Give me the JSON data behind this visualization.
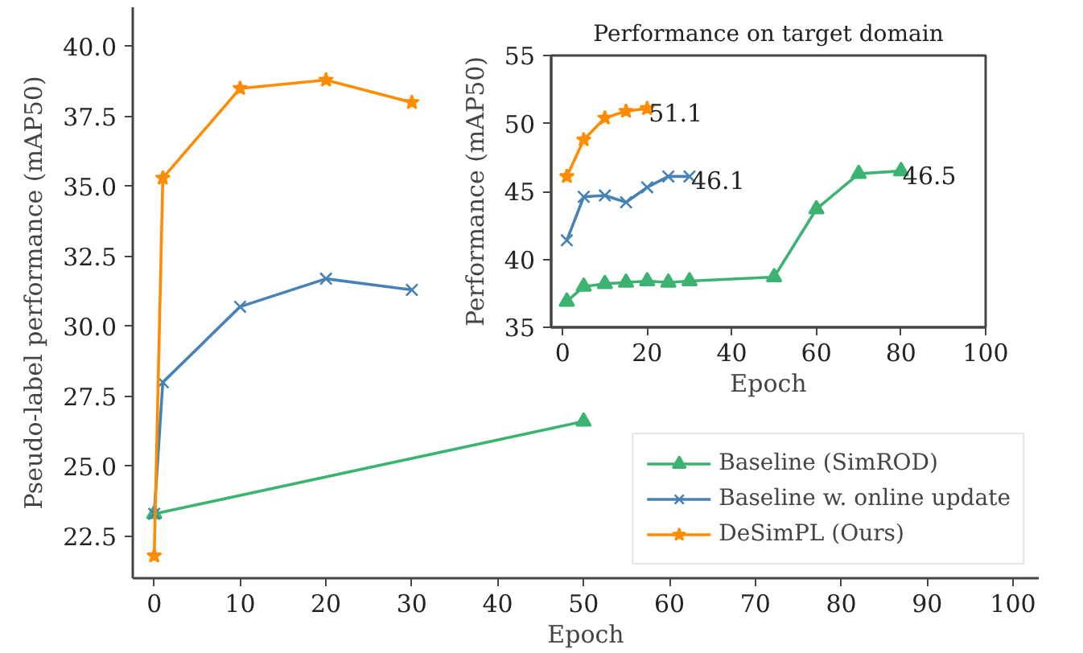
{
  "chart_data": [
    {
      "type": "line",
      "xlabel": "Epoch",
      "ylabel": "Pseudo-label performance (mAP50)",
      "xlim": [
        -2.5,
        103
      ],
      "ylim": [
        21.0,
        41.4
      ],
      "xticks": [
        0,
        10,
        20,
        30,
        40,
        50,
        60,
        70,
        80,
        90,
        100
      ],
      "yticks": [
        {
          "value": 22.5,
          "label": "22.5"
        },
        {
          "value": 25,
          "label": "25.0"
        },
        {
          "value": 27.5,
          "label": "27.5"
        },
        {
          "value": 30,
          "label": "30.0"
        },
        {
          "value": 32.5,
          "label": "32.5"
        },
        {
          "value": 35,
          "label": "35.0"
        },
        {
          "value": 37.5,
          "label": "37.5"
        },
        {
          "value": 40,
          "label": "40.0"
        }
      ],
      "grid": false,
      "legend": "bottom right",
      "line_style": "solid",
      "series": [
        {
          "name": "Baseline (SimROD)",
          "color": "#3cb371",
          "marker": "triangle",
          "x": [
            0,
            50
          ],
          "values": [
            23.3,
            26.6
          ]
        },
        {
          "name": "Baseline w. online update",
          "color": "#4682b4",
          "marker": "cross",
          "x": [
            0,
            1,
            10,
            20,
            30
          ],
          "values": [
            23.3,
            28.0,
            30.7,
            31.7,
            31.3
          ]
        },
        {
          "name": "DeSimPL (Ours)",
          "color": "#ff8c00",
          "marker": "star",
          "x": [
            0,
            1,
            10,
            20,
            30
          ],
          "values": [
            21.8,
            35.3,
            38.5,
            38.8,
            38.0
          ]
        }
      ]
    },
    {
      "type": "line",
      "title": "Performance on target domain",
      "xlabel": "Epoch",
      "ylabel": "Performance (mAP50)",
      "xlim": [
        -2.7,
        100
      ],
      "ylim": [
        35,
        55
      ],
      "xticks": [
        0,
        20,
        40,
        60,
        80,
        100
      ],
      "yticks": [
        35,
        40,
        45,
        50,
        55
      ],
      "grid": false,
      "line_style": "solid",
      "series": [
        {
          "color": "#3cb371",
          "marker": "triangle",
          "x": [
            1,
            5,
            10,
            15,
            20,
            25,
            30,
            50,
            60,
            70,
            80
          ],
          "values": [
            36.9,
            38.0,
            38.2,
            38.3,
            38.4,
            38.3,
            38.4,
            38.7,
            43.7,
            46.3,
            46.5
          ]
        },
        {
          "color": "#4682b4",
          "marker": "cross",
          "x": [
            1,
            5,
            10,
            15,
            20,
            25,
            30
          ],
          "values": [
            41.4,
            44.6,
            44.7,
            44.2,
            45.3,
            46.1,
            46.1
          ]
        },
        {
          "color": "#ff8c00",
          "marker": "star",
          "x": [
            1,
            5,
            10,
            15,
            20
          ],
          "values": [
            46.1,
            48.8,
            50.4,
            50.9,
            51.1
          ]
        }
      ],
      "annotations": [
        {
          "text": "51.1",
          "x": 20,
          "y": 51.1
        },
        {
          "text": "46.1",
          "x": 30,
          "y": 46.1
        },
        {
          "text": "46.5",
          "x": 80,
          "y": 46.5
        }
      ]
    }
  ]
}
